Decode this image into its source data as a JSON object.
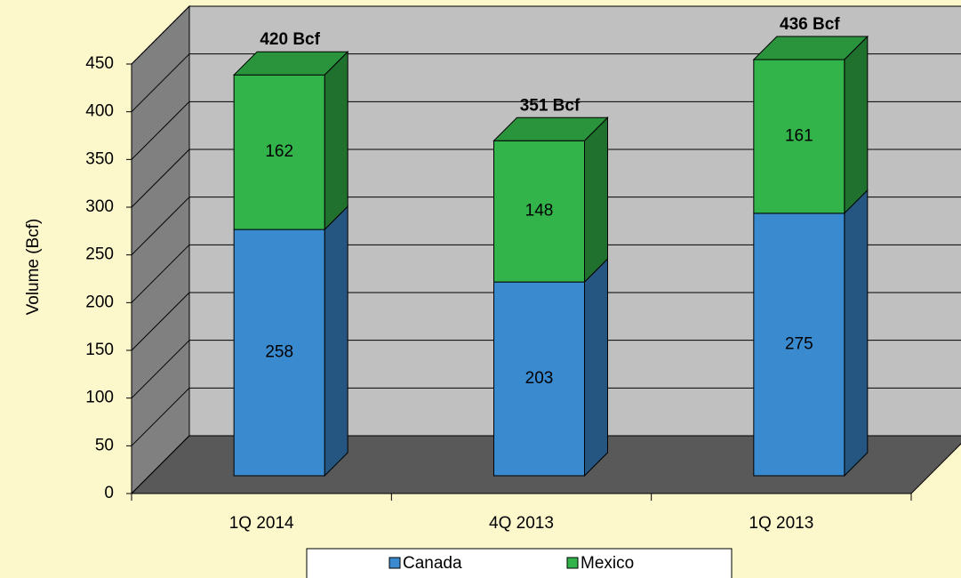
{
  "chart_data": {
    "type": "bar3d_stacked",
    "categories": [
      "1Q 2014",
      "4Q 2013",
      "1Q 2013"
    ],
    "series": [
      {
        "name": "Canada",
        "color": "#3a8ad0",
        "values": [
          258,
          203,
          275
        ]
      },
      {
        "name": "Mexico",
        "color": "#33b44a",
        "values": [
          162,
          148,
          161
        ]
      }
    ],
    "totals": [
      420,
      351,
      436
    ],
    "total_labels": [
      "420 Bcf",
      "351 Bcf",
      "436 Bcf"
    ],
    "y_label": "Volume (Bcf)",
    "ylim": [
      0,
      450
    ],
    "yticks": [
      0,
      50,
      100,
      150,
      200,
      250,
      300,
      350,
      400,
      450
    ],
    "grid": true,
    "legend": "bottom"
  }
}
